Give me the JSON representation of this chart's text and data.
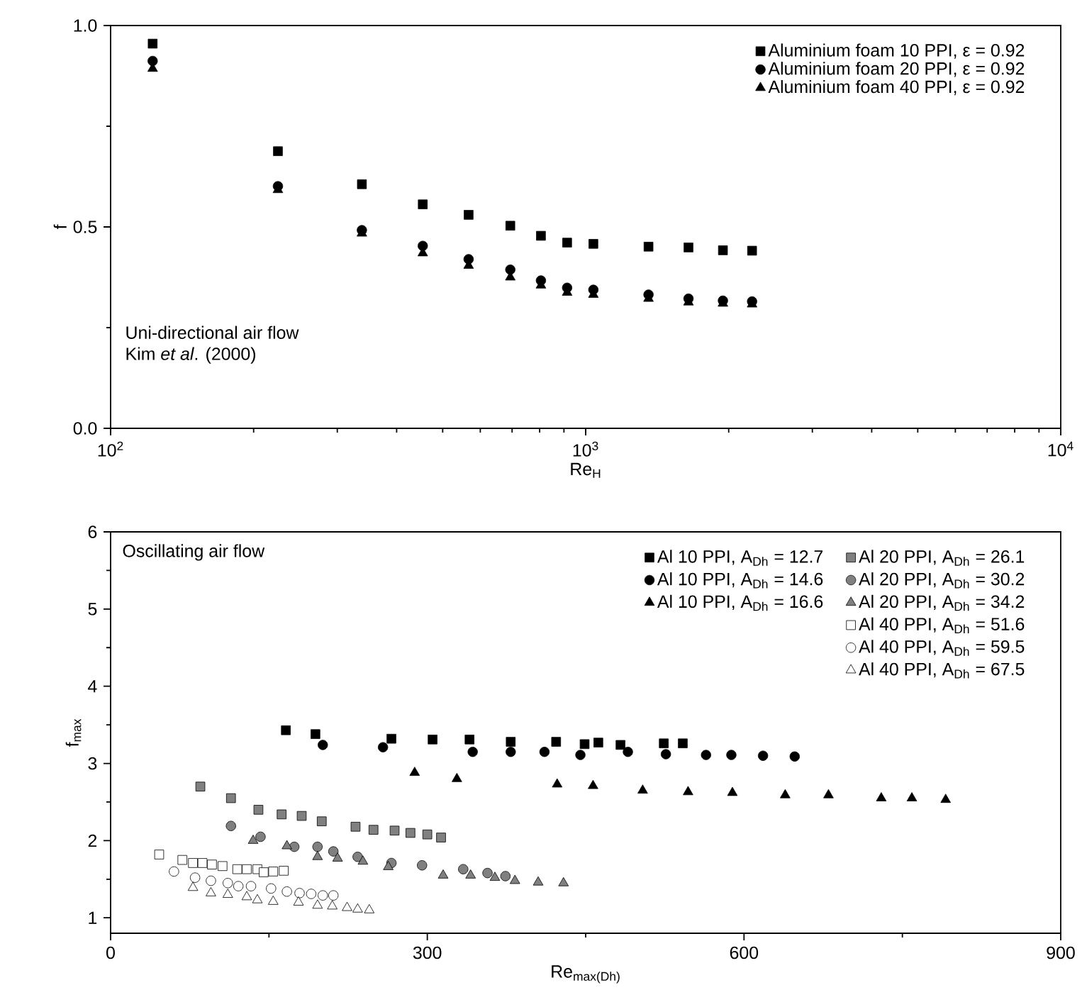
{
  "chart_data": [
    {
      "type": "scatter",
      "xlabel": "Re$_{H}$",
      "ylabel": "f",
      "log": "x",
      "xlim": [
        100,
        10000
      ],
      "ylim": [
        0,
        1
      ],
      "xticks": [
        {
          "value": 100,
          "label": "10$^{2}$"
        },
        {
          "value": 1000,
          "label": "10$^{3}$"
        },
        {
          "value": 10000,
          "label": "10$^{4}$"
        }
      ],
      "yticks": [
        {
          "value": 0,
          "label": "0.0"
        },
        0.5,
        {
          "value": 1,
          "label": "1.0"
        }
      ],
      "legend": "top right",
      "grid": false,
      "annotations": [
        "Uni-directional air flow",
        "Kim *et al*. (2000)"
      ],
      "x": [
        122.6,
        225,
        338,
        454,
        567,
        694,
        805,
        914,
        1038,
        1356,
        1646,
        1945,
        2240
      ],
      "series": [
        {
          "name": "Aluminium foam 10 PPI, ε = 0.92",
          "color": "#000000",
          "marker": "square",
          "values": [
            0.955,
            0.688,
            0.606,
            0.556,
            0.53,
            0.503,
            0.478,
            0.461,
            0.458,
            0.451,
            0.449,
            0.442,
            0.441
          ]
        },
        {
          "name": "Aluminium foam 20 PPI, ε = 0.92",
          "color": "#000000",
          "marker": "circle",
          "values": [
            0.912,
            0.601,
            0.492,
            0.453,
            0.42,
            0.394,
            0.367,
            0.349,
            0.344,
            0.332,
            0.322,
            0.317,
            0.315
          ]
        },
        {
          "name": "Aluminium foam 40 PPI, ε = 0.92",
          "color": "#000000",
          "marker": "triangle",
          "values": [
            0.893,
            0.592,
            0.484,
            0.435,
            0.404,
            0.375,
            0.355,
            0.337,
            0.332,
            0.322,
            0.313,
            0.31,
            0.308
          ]
        }
      ]
    },
    {
      "type": "scatter",
      "xlabel": "Re$_{max(Dh)}$",
      "ylabel": "f$_{max}$",
      "xlim": [
        0,
        900
      ],
      "ylim": [
        0.8,
        6
      ],
      "xticks": [
        0,
        300,
        600,
        900
      ],
      "yticks": [
        1,
        2,
        3,
        4,
        5,
        6
      ],
      "legend": "top right",
      "grid": false,
      "annotations": [
        "Oscillating air flow"
      ],
      "series": [
        {
          "name": "Al 10 PPI, A$_{Dh}$ = 12.7",
          "color": "#000000",
          "marker": "square",
          "x": [
            166,
            194,
            266,
            305,
            340,
            379,
            422,
            449,
            462,
            483,
            524,
            542
          ],
          "values": [
            3.43,
            3.38,
            3.32,
            3.31,
            3.31,
            3.28,
            3.28,
            3.25,
            3.27,
            3.24,
            3.26,
            3.26
          ]
        },
        {
          "name": "Al 10 PPI, A$_{Dh}$ = 14.6",
          "color": "#000000",
          "marker": "circle",
          "x": [
            201,
            258,
            343,
            379,
            411,
            445,
            490,
            526,
            564,
            588,
            618,
            648
          ],
          "values": [
            3.24,
            3.21,
            3.15,
            3.15,
            3.15,
            3.11,
            3.15,
            3.12,
            3.11,
            3.11,
            3.1,
            3.09
          ]
        },
        {
          "name": "Al 10 PPI, A$_{Dh}$ = 16.6",
          "color": "#000000",
          "marker": "triangle",
          "x": [
            288,
            328,
            423,
            457,
            504,
            547,
            589,
            639,
            680,
            730,
            759,
            791
          ],
          "values": [
            2.88,
            2.8,
            2.73,
            2.71,
            2.65,
            2.63,
            2.62,
            2.59,
            2.59,
            2.55,
            2.55,
            2.53
          ]
        },
        {
          "name": "Al 20 PPI, A$_{Dh}$ = 26.1",
          "color": "#808080",
          "marker": "square",
          "x": [
            85,
            114,
            140,
            162,
            181,
            200,
            232,
            249,
            269,
            284,
            300,
            313
          ],
          "values": [
            2.7,
            2.55,
            2.4,
            2.34,
            2.32,
            2.25,
            2.18,
            2.14,
            2.13,
            2.1,
            2.08,
            2.04
          ]
        },
        {
          "name": "Al 20 PPI, A$_{Dh}$ = 30.2",
          "color": "#808080",
          "marker": "circle",
          "x": [
            114,
            142,
            174,
            196,
            211,
            234,
            266,
            295,
            334,
            357,
            374
          ],
          "values": [
            2.19,
            2.05,
            1.92,
            1.92,
            1.86,
            1.79,
            1.71,
            1.68,
            1.63,
            1.58,
            1.54
          ]
        },
        {
          "name": "Al 20 PPI, A$_{Dh}$ = 34.2",
          "color": "#808080",
          "marker": "triangle",
          "x": [
            135,
            167,
            196,
            215,
            239,
            263,
            315,
            341,
            364,
            383,
            405,
            429
          ],
          "values": [
            2.0,
            1.93,
            1.79,
            1.77,
            1.73,
            1.66,
            1.55,
            1.55,
            1.52,
            1.48,
            1.46,
            1.45
          ]
        },
        {
          "name": "Al 40 PPI, A$_{Dh}$ = 51.6",
          "color": "#ffffff",
          "marker": "square",
          "x": [
            46,
            68,
            78,
            87,
            96,
            106,
            120,
            129,
            139,
            145,
            154,
            164
          ],
          "values": [
            1.82,
            1.75,
            1.71,
            1.71,
            1.69,
            1.67,
            1.63,
            1.63,
            1.63,
            1.59,
            1.6,
            1.61
          ]
        },
        {
          "name": "Al 40 PPI, A$_{Dh}$ = 59.5",
          "color": "#ffffff",
          "marker": "circle",
          "x": [
            60,
            80,
            95,
            111,
            121,
            133,
            152,
            167,
            179,
            190,
            201,
            211
          ],
          "values": [
            1.6,
            1.52,
            1.48,
            1.45,
            1.41,
            1.41,
            1.38,
            1.34,
            1.32,
            1.31,
            1.29,
            1.29
          ]
        },
        {
          "name": "Al 40 PPI, A$_{Dh}$ = 67.5",
          "color": "#ffffff",
          "marker": "triangle",
          "x": [
            78,
            95,
            111,
            129,
            139,
            154,
            178,
            196,
            210,
            224,
            234,
            245
          ],
          "values": [
            1.39,
            1.32,
            1.3,
            1.27,
            1.23,
            1.21,
            1.2,
            1.16,
            1.15,
            1.13,
            1.11,
            1.1
          ]
        }
      ]
    }
  ]
}
